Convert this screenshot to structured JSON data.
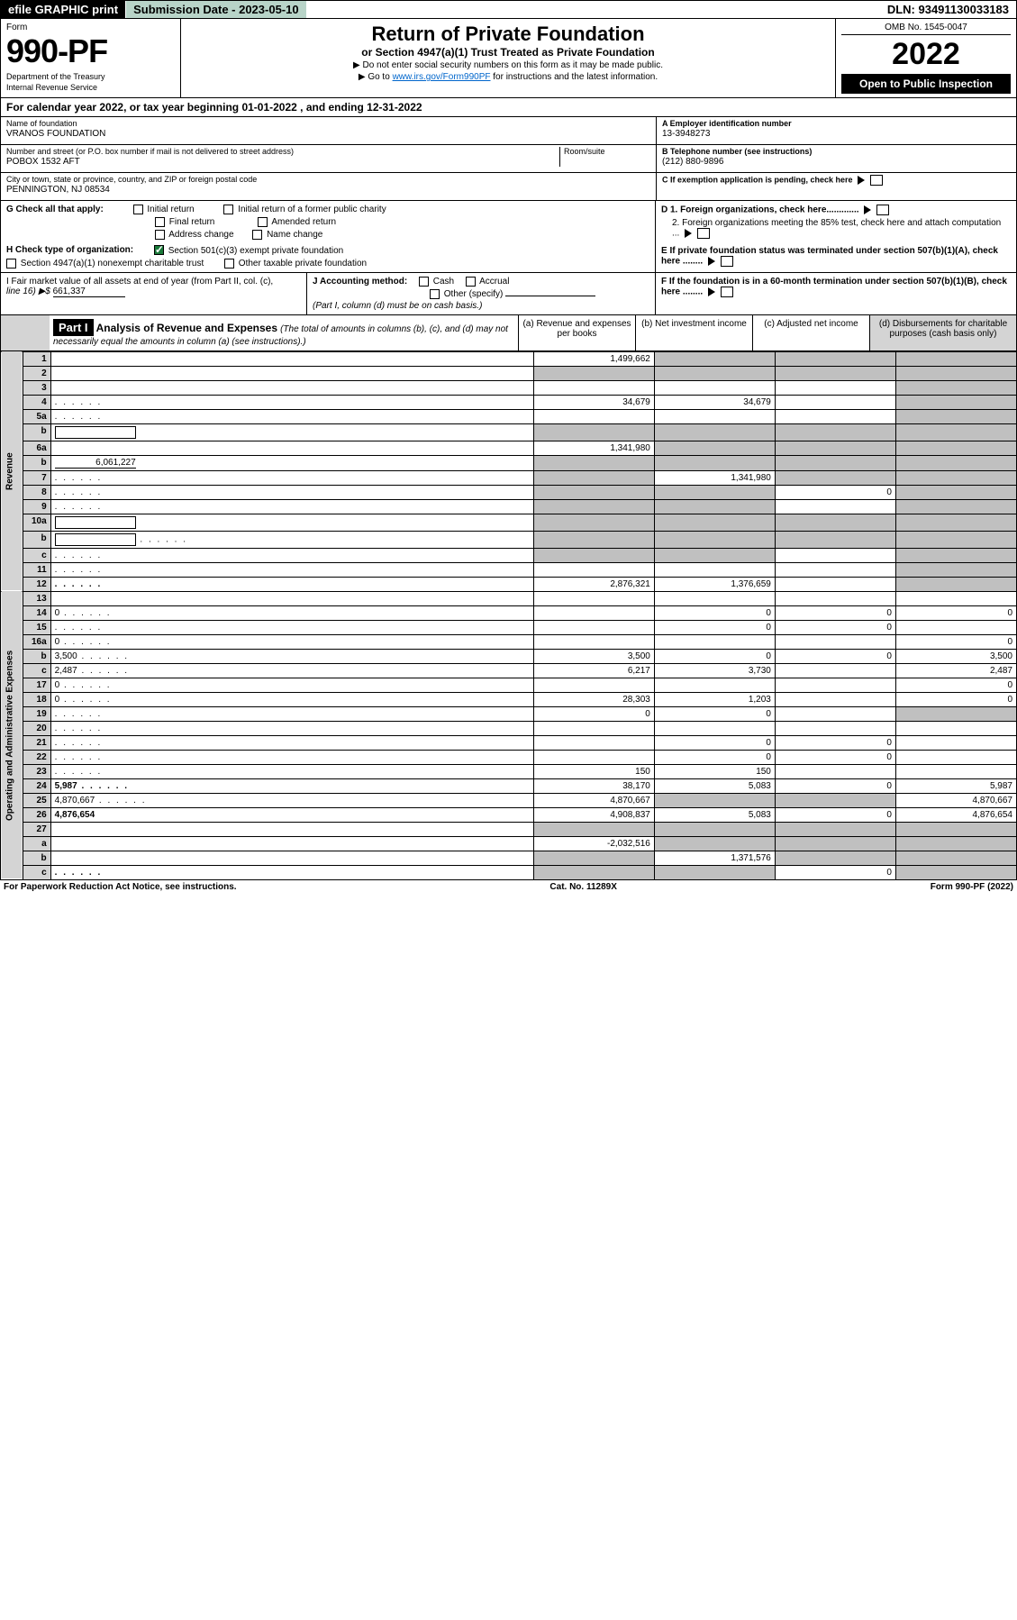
{
  "topbar": {
    "efile": "efile GRAPHIC print",
    "submission_label": "Submission Date - 2023-05-10",
    "dln_label": "DLN: 93491130033183"
  },
  "header": {
    "form_label": "Form",
    "form_num": "990-PF",
    "dept": "Department of the Treasury",
    "irs": "Internal Revenue Service",
    "title": "Return of Private Foundation",
    "subtitle": "or Section 4947(a)(1) Trust Treated as Private Foundation",
    "instr1_pre": "▶ Do not enter social security numbers on this form as it may be made public.",
    "instr2_pre": "▶ Go to ",
    "instr2_link": "www.irs.gov/Form990PF",
    "instr2_post": " for instructions and the latest information.",
    "omb": "OMB No. 1545-0047",
    "year": "2022",
    "open_pub": "Open to Public Inspection"
  },
  "cal_year": "For calendar year 2022, or tax year beginning 01-01-2022 , and ending 12-31-2022",
  "info": {
    "name_lbl": "Name of foundation",
    "name_val": "VRANOS FOUNDATION",
    "addr_lbl": "Number and street (or P.O. box number if mail is not delivered to street address)",
    "addr_val": "POBOX 1532 AFT",
    "room_lbl": "Room/suite",
    "city_lbl": "City or town, state or province, country, and ZIP or foreign postal code",
    "city_val": "PENNINGTON, NJ  08534",
    "ein_lbl": "A Employer identification number",
    "ein_val": "13-3948273",
    "phone_lbl": "B Telephone number (see instructions)",
    "phone_val": "(212) 880-9896",
    "c_lbl": "C If exemption application is pending, check here",
    "d1_lbl": "D 1. Foreign organizations, check here.............",
    "d2_lbl": "2. Foreign organizations meeting the 85% test, check here and attach computation ...",
    "e_lbl": "E  If private foundation status was terminated under section 507(b)(1)(A), check here ........",
    "f_lbl": "F  If the foundation is in a 60-month termination under section 507(b)(1)(B), check here ........"
  },
  "g": {
    "lbl": "G Check all that apply: ",
    "opts": [
      "Initial return",
      "Initial return of a former public charity",
      "Final return",
      "Amended return",
      "Address change",
      "Name change"
    ]
  },
  "h": {
    "lbl": "H Check type of organization:",
    "opt1": "Section 501(c)(3) exempt private foundation",
    "opt2": "Section 4947(a)(1) nonexempt charitable trust",
    "opt3": "Other taxable private foundation"
  },
  "i": {
    "lbl": "I Fair market value of all assets at end of year (from Part II, col. (c),",
    "line": "line 16) ▶$ ",
    "val": "661,337"
  },
  "j": {
    "lbl": "J Accounting method:",
    "opts": [
      "Cash",
      "Accrual",
      "Other (specify)"
    ],
    "note": "(Part I, column (d) must be on cash basis.)"
  },
  "part1": {
    "hdr": "Part I",
    "title": "Analysis of Revenue and Expenses",
    "note": "(The total of amounts in columns (b), (c), and (d) may not necessarily equal the amounts in column (a) (see instructions).)",
    "cols": {
      "a": "(a)   Revenue and expenses per books",
      "b": "(b)   Net investment income",
      "c": "(c)   Adjusted net income",
      "d": "(d)   Disbursements for charitable purposes (cash basis only)"
    }
  },
  "sides": {
    "rev": "Revenue",
    "exp": "Operating and Administrative Expenses"
  },
  "rows": [
    {
      "n": "1",
      "d": "",
      "a": "1,499,662",
      "b": "",
      "c": "",
      "bg": true,
      "cg": true,
      "dg": true
    },
    {
      "n": "2",
      "d": "",
      "a": "",
      "b": "",
      "c": "",
      "ag": true,
      "bg": true,
      "cg": true,
      "dg": true,
      "bold_not": true
    },
    {
      "n": "3",
      "d": "",
      "a": "",
      "b": "",
      "c": "",
      "dg": true
    },
    {
      "n": "4",
      "d": "",
      "a": "34,679",
      "b": "34,679",
      "c": "",
      "dg": true,
      "dots": true
    },
    {
      "n": "5a",
      "d": "",
      "a": "",
      "b": "",
      "c": "",
      "dg": true,
      "dots": true
    },
    {
      "n": "b",
      "d": "",
      "a": "",
      "b": "",
      "c": "",
      "ag": true,
      "bg": true,
      "cg": true,
      "dg": true,
      "inline_blank": true
    },
    {
      "n": "6a",
      "d": "",
      "a": "1,341,980",
      "b": "",
      "c": "",
      "bg": true,
      "cg": true,
      "dg": true
    },
    {
      "n": "b",
      "d": "",
      "a": "",
      "b": "",
      "c": "",
      "ag": true,
      "bg": true,
      "cg": true,
      "dg": true,
      "inline_val": "6,061,227"
    },
    {
      "n": "7",
      "d": "",
      "a": "",
      "b": "1,341,980",
      "c": "",
      "ag": true,
      "cg": true,
      "dg": true,
      "dots": true
    },
    {
      "n": "8",
      "d": "",
      "a": "",
      "b": "",
      "c": "0",
      "ag": true,
      "bg": true,
      "dg": true,
      "dots": true
    },
    {
      "n": "9",
      "d": "",
      "a": "",
      "b": "",
      "c": "",
      "ag": true,
      "bg": true,
      "dg": true,
      "dots": true
    },
    {
      "n": "10a",
      "d": "",
      "a": "",
      "b": "",
      "c": "",
      "ag": true,
      "bg": true,
      "cg": true,
      "dg": true,
      "inline_blank": true
    },
    {
      "n": "b",
      "d": "",
      "a": "",
      "b": "",
      "c": "",
      "ag": true,
      "bg": true,
      "cg": true,
      "dg": true,
      "inline_blank": true,
      "dots": true
    },
    {
      "n": "c",
      "d": "",
      "a": "",
      "b": "",
      "c": "",
      "ag": true,
      "bg": true,
      "dg": true,
      "dots": true
    },
    {
      "n": "11",
      "d": "",
      "a": "",
      "b": "",
      "c": "",
      "dg": true,
      "dots": true
    },
    {
      "n": "12",
      "d": "",
      "a": "2,876,321",
      "b": "1,376,659",
      "c": "",
      "dg": true,
      "bold": true,
      "dots": true
    },
    {
      "n": "13",
      "d": "",
      "a": "",
      "b": "",
      "c": ""
    },
    {
      "n": "14",
      "d": "0",
      "a": "",
      "b": "0",
      "c": "0",
      "dots": true
    },
    {
      "n": "15",
      "d": "",
      "a": "",
      "b": "0",
      "c": "0",
      "dots": true
    },
    {
      "n": "16a",
      "d": "0",
      "a": "",
      "b": "",
      "c": "",
      "dots": true
    },
    {
      "n": "b",
      "d": "3,500",
      "a": "3,500",
      "b": "0",
      "c": "0",
      "dots": true
    },
    {
      "n": "c",
      "d": "2,487",
      "a": "6,217",
      "b": "3,730",
      "c": "",
      "dots": true
    },
    {
      "n": "17",
      "d": "0",
      "a": "",
      "b": "",
      "c": "",
      "dots": true
    },
    {
      "n": "18",
      "d": "0",
      "a": "28,303",
      "b": "1,203",
      "c": "",
      "dots": true
    },
    {
      "n": "19",
      "d": "",
      "a": "0",
      "b": "0",
      "c": "",
      "dg": true,
      "dots": true
    },
    {
      "n": "20",
      "d": "",
      "a": "",
      "b": "",
      "c": "",
      "dots": true
    },
    {
      "n": "21",
      "d": "",
      "a": "",
      "b": "0",
      "c": "0",
      "dots": true
    },
    {
      "n": "22",
      "d": "",
      "a": "",
      "b": "0",
      "c": "0",
      "dots": true
    },
    {
      "n": "23",
      "d": "",
      "a": "150",
      "b": "150",
      "c": "",
      "dots": true
    },
    {
      "n": "24",
      "d": "5,987",
      "a": "38,170",
      "b": "5,083",
      "c": "0",
      "bold": true,
      "dots": true
    },
    {
      "n": "25",
      "d": "4,870,667",
      "a": "4,870,667",
      "b": "",
      "c": "",
      "bg": true,
      "cg": true,
      "dots": true
    },
    {
      "n": "26",
      "d": "4,876,654",
      "a": "4,908,837",
      "b": "5,083",
      "c": "0",
      "bold": true
    },
    {
      "n": "27",
      "d": "",
      "a": "",
      "b": "",
      "c": "",
      "ag": true,
      "bg": true,
      "cg": true,
      "dg": true
    },
    {
      "n": "a",
      "d": "",
      "a": "-2,032,516",
      "b": "",
      "c": "",
      "bg": true,
      "cg": true,
      "dg": true,
      "bold": true
    },
    {
      "n": "b",
      "d": "",
      "a": "",
      "b": "1,371,576",
      "c": "",
      "ag": true,
      "cg": true,
      "dg": true,
      "bold": true
    },
    {
      "n": "c",
      "d": "",
      "a": "",
      "b": "",
      "c": "0",
      "ag": true,
      "bg": true,
      "dg": true,
      "bold": true,
      "dots": true
    }
  ],
  "footer": {
    "left": "For Paperwork Reduction Act Notice, see instructions.",
    "mid": "Cat. No. 11289X",
    "right": "Form 990-PF (2022)"
  }
}
